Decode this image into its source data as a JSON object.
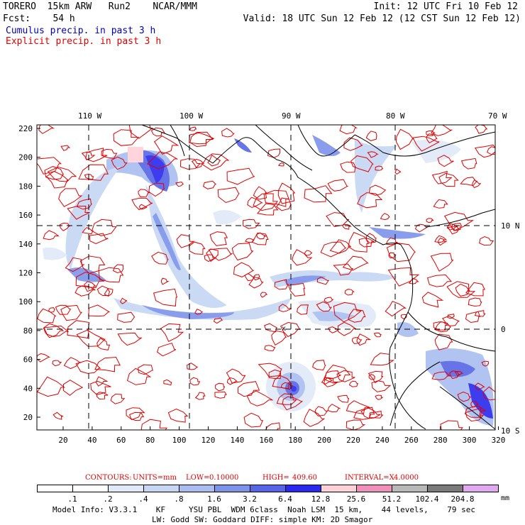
{
  "header": {
    "line1_left": "TORERO  15km ARW   Run2    NCAR/MMM",
    "line1_right": "Init: 12 UTC Fri 10 Feb 12",
    "line2_left": "Fcst:    54 h",
    "line2_right": "Valid: 18 UTC Sun 12 Feb 12 (12 CST Sun 12 Feb 12)",
    "legend_cumulus": "Cumulus precip. in past 3 h",
    "legend_explicit": "Explicit precip. in past 3 h"
  },
  "map": {
    "top_labels": [
      "110 W",
      "100 W",
      "90 W",
      "80 W",
      "70 W"
    ],
    "right_labels": [
      "10 N",
      "0",
      "10 S"
    ],
    "y_ticks": [
      "220",
      "200",
      "180",
      "160",
      "140",
      "120",
      "100",
      "80",
      "60",
      "40",
      "20"
    ],
    "x_ticks": [
      "20",
      "40",
      "60",
      "80",
      "100",
      "120",
      "140",
      "160",
      "180",
      "200",
      "220",
      "240",
      "260",
      "280",
      "300",
      "320"
    ],
    "station_mark": "x"
  },
  "contour_info": {
    "contours_label": "CONTOURS:",
    "units_label": "UNITS=mm",
    "low_label": "LOW=",
    "low_value": "0.10000",
    "high_label": "HIGH=",
    "high_value": "409.60",
    "interval_label": "INTERVAL=X",
    "interval_value": "4.0000"
  },
  "colorbar": {
    "labels": [
      ".1",
      ".2",
      ".4",
      ".8",
      "1.6",
      "3.2",
      "6.4",
      "12.8",
      "25.6",
      "51.2",
      "102.4",
      "204.8"
    ],
    "unit": "mm",
    "colors": [
      "#ffffff",
      "#ffffff",
      "#dfe9f7",
      "#c6d6f3",
      "#a9bdf0",
      "#7d93ea",
      "#5665e6",
      "#2a28ee",
      "#ffd0d8",
      "#f090b8",
      "#b8b8b8",
      "#7a7a7a",
      "#e0a8f0"
    ]
  },
  "footer": {
    "line1": "Model Info: V3.3.1    KF     YSU PBL  WDM 6class  Noah LSM  15 km,    44 levels,    79 sec",
    "line2": "LW: Godd SW: Goddard DIFF: simple KM: 2D Smagor"
  }
}
